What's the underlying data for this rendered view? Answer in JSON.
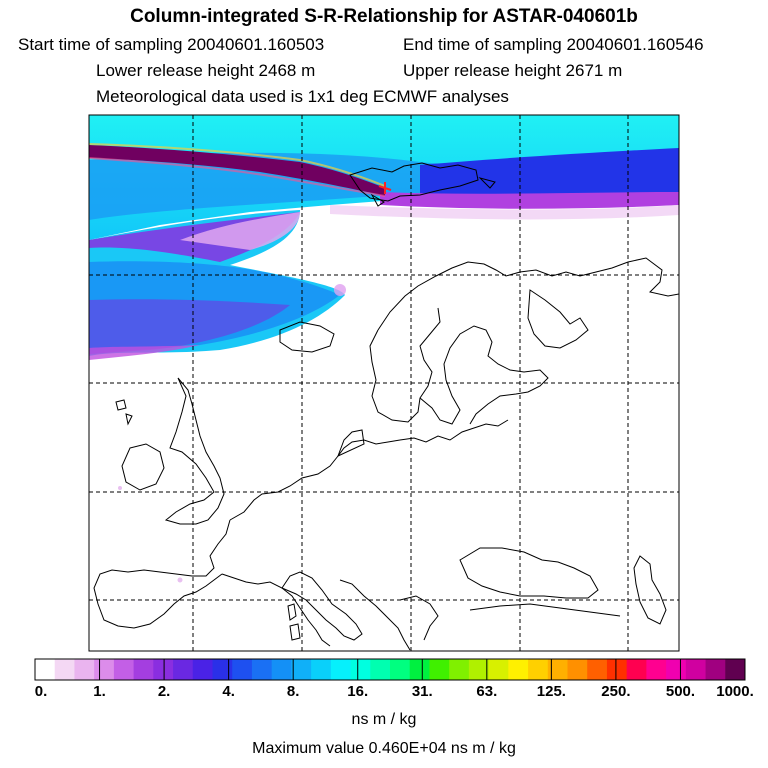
{
  "header": {
    "title": "Column-integrated S-R-Relationship for ASTAR-040601b",
    "start_time": "Start time of sampling 20040601.160503",
    "end_time": "End time of sampling 20040601.160546",
    "lower_height": "Lower release height 2468 m",
    "upper_height": "Upper release height 2671 m",
    "met_data": "Meteorological data used is 1x1 deg ECMWF analyses"
  },
  "colorbar": {
    "tick_labels": [
      "0.",
      "1.",
      "2.",
      "4.",
      "8.",
      "16.",
      "31.",
      "63.",
      "125.",
      "250.",
      "500.",
      "1000."
    ],
    "colors": [
      "#ffffff",
      "#f4d8f4",
      "#eab4ef",
      "#dc8cea",
      "#c35fe6",
      "#a43ee0",
      "#8a2ee0",
      "#6a28e2",
      "#4a22e6",
      "#2a30e8",
      "#1e50f0",
      "#1a70f4",
      "#1490f6",
      "#10b0f8",
      "#0ad0fa",
      "#06f0fc",
      "#00ffe0",
      "#00ffb0",
      "#00ff80",
      "#00f040",
      "#40f000",
      "#80f000",
      "#b0f000",
      "#d8f000",
      "#fff000",
      "#ffd000",
      "#ffb000",
      "#ff9000",
      "#ff6000",
      "#ff3000",
      "#ff0050",
      "#ff0090",
      "#f000b0",
      "#d000a0",
      "#a00080",
      "#600050"
    ],
    "units": "ns m / kg",
    "max_value": "Maximum value  0.460E+04 ns m / kg"
  }
}
